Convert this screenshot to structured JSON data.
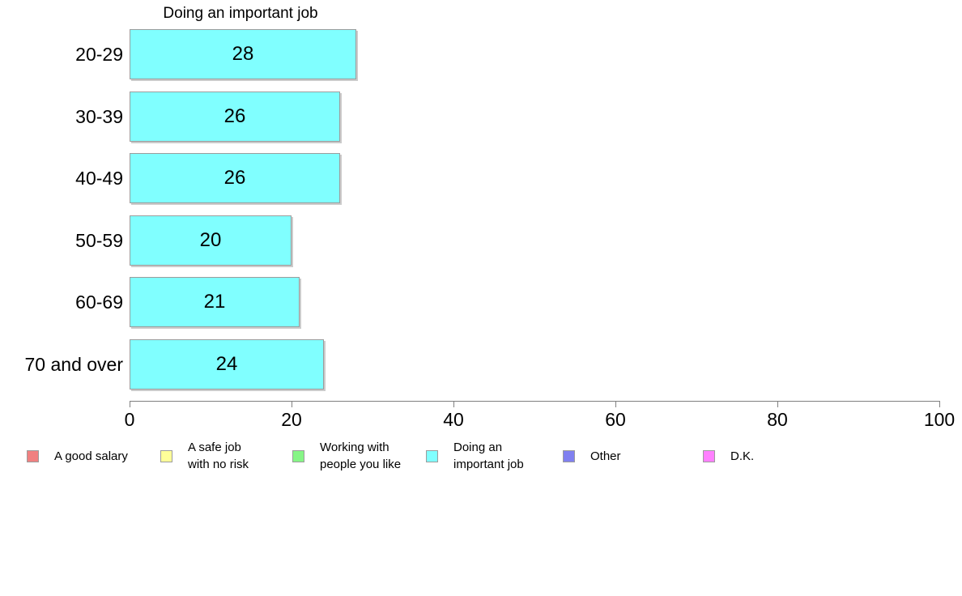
{
  "chart_data": {
    "type": "bar",
    "orientation": "horizontal",
    "title": "Doing an important job",
    "categories": [
      "20-29",
      "30-39",
      "40-49",
      "50-59",
      "60-69",
      "70 and over"
    ],
    "values": [
      28,
      26,
      26,
      20,
      21,
      24
    ],
    "xlim": [
      0,
      100
    ],
    "x_ticks": [
      0,
      20,
      40,
      60,
      80,
      100
    ],
    "grid": false,
    "bar_value_labels": [
      "28",
      "26",
      "26",
      "20",
      "21",
      "24"
    ],
    "colors": {
      "bar_fill": "#80FFFF",
      "bar_border": "#9c9c9c",
      "axis": "#808080",
      "text": "#000000",
      "background": "#ffffff"
    },
    "legend": {
      "position": "bottom",
      "items": [
        {
          "lines": [
            "A good salary"
          ],
          "color": "#F08080"
        },
        {
          "lines": [
            "A safe job",
            "with no risk"
          ],
          "color": "#FFFF99"
        },
        {
          "lines": [
            "Working with",
            "people you like"
          ],
          "color": "#86F586"
        },
        {
          "lines": [
            "Doing an",
            "important job"
          ],
          "color": "#80FFFF"
        },
        {
          "lines": [
            "Other"
          ],
          "color": "#8080F0"
        },
        {
          "lines": [
            "D.K."
          ],
          "color": "#FF80FF"
        }
      ]
    }
  }
}
